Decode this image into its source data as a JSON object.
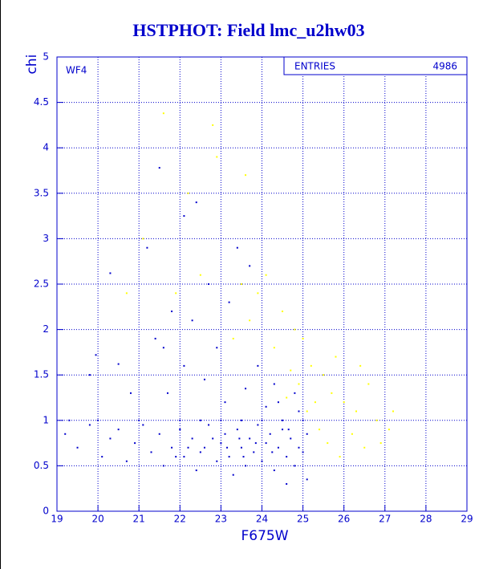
{
  "chart_data": {
    "type": "scatter",
    "title": "HSTPHOT: Field lmc_u2hw03",
    "x_label": "F675W",
    "y_label": "chi",
    "panel_label": "WF4",
    "stats": {
      "label": "ENTRIES",
      "value": 4986
    },
    "xlim": [
      19,
      29
    ],
    "xticks": [
      19,
      20,
      21,
      22,
      23,
      24,
      25,
      26,
      27,
      28,
      29
    ],
    "ylim": [
      0,
      5
    ],
    "yticks": [
      0,
      0.5,
      1,
      1.5,
      2,
      2.5,
      3,
      3.5,
      4,
      4.5,
      5
    ],
    "grid": true,
    "series": [
      {
        "color": "#0000cc",
        "x": [
          19.2,
          19.5,
          19.8,
          20.1,
          20.3,
          20.5,
          20.7,
          20.9,
          21.1,
          21.3,
          21.5,
          21.6,
          21.8,
          22.0,
          22.1,
          22.3,
          22.4,
          22.6,
          22.7,
          22.9,
          23.0,
          23.1,
          23.2,
          23.3,
          23.4,
          23.5,
          23.6,
          23.7,
          23.8,
          23.9,
          24.0,
          24.1,
          24.2,
          24.3,
          24.4,
          24.5,
          24.6,
          24.7,
          24.8,
          24.9,
          25.0,
          25.1,
          22.5,
          23.15,
          23.45,
          23.85,
          24.25,
          22.8,
          22.2,
          21.9,
          24.65,
          23.55,
          20.0,
          21.0,
          22.0,
          23.0,
          24.0,
          25.0,
          23.5,
          22.5,
          24.5,
          21.7,
          22.1,
          22.6,
          23.1,
          23.6,
          24.1,
          21.4,
          22.3,
          21.2,
          21.5,
          22.1,
          22.7,
          23.4,
          23.7,
          20.3,
          19.95,
          20.5,
          21.8,
          22.9,
          23.9,
          24.3,
          24.8,
          20.8,
          19.8,
          22.4,
          21.6,
          23.2,
          24.4,
          24.9,
          25.1,
          24.6,
          19.3
        ],
        "values": [
          0.85,
          0.7,
          0.95,
          0.6,
          0.8,
          0.9,
          0.55,
          0.75,
          0.95,
          0.65,
          0.85,
          0.5,
          0.7,
          0.9,
          0.6,
          0.8,
          0.45,
          0.7,
          0.95,
          0.55,
          0.75,
          0.85,
          0.6,
          0.4,
          0.9,
          0.7,
          0.5,
          0.8,
          0.65,
          0.95,
          0.55,
          0.75,
          0.85,
          0.45,
          0.7,
          0.9,
          0.6,
          0.8,
          0.5,
          0.7,
          0.65,
          0.85,
          0.65,
          0.7,
          0.8,
          0.75,
          0.65,
          0.8,
          0.7,
          0.6,
          0.9,
          0.6,
          1.0,
          1.0,
          1.0,
          1.0,
          1.0,
          1.0,
          1.0,
          1.0,
          1.0,
          1.3,
          1.6,
          1.45,
          1.2,
          1.35,
          1.15,
          1.9,
          2.1,
          2.9,
          3.78,
          3.25,
          2.5,
          2.9,
          2.7,
          2.62,
          1.72,
          1.62,
          2.2,
          1.8,
          1.6,
          1.4,
          1.3,
          1.3,
          1.5,
          3.4,
          1.8,
          2.3,
          1.2,
          1.1,
          0.35,
          0.3,
          1.0
        ]
      },
      {
        "color": "#ffff00",
        "x": [
          21.6,
          22.8,
          22.9,
          23.6,
          22.2,
          21.1,
          24.1,
          23.9,
          24.5,
          24.8,
          25.0,
          25.2,
          25.5,
          25.7,
          26.0,
          26.3,
          26.6,
          26.8,
          27.1,
          25.4,
          25.6,
          25.9,
          26.2,
          26.5,
          25.3,
          24.7,
          24.3,
          23.7,
          23.3,
          22.5,
          21.9,
          20.7,
          24.9,
          25.8,
          26.4,
          27.2,
          26.9,
          25.1,
          24.6,
          23.5
        ],
        "values": [
          4.38,
          4.25,
          3.9,
          3.7,
          3.5,
          3.0,
          2.6,
          2.4,
          2.2,
          2.0,
          1.9,
          1.6,
          1.5,
          1.3,
          1.2,
          1.1,
          1.4,
          1.0,
          0.9,
          0.9,
          0.75,
          0.6,
          0.85,
          0.7,
          1.2,
          1.55,
          1.8,
          2.1,
          1.9,
          2.6,
          2.4,
          2.4,
          1.4,
          1.7,
          1.6,
          1.1,
          0.75,
          1.1,
          1.25,
          2.5
        ]
      }
    ]
  }
}
